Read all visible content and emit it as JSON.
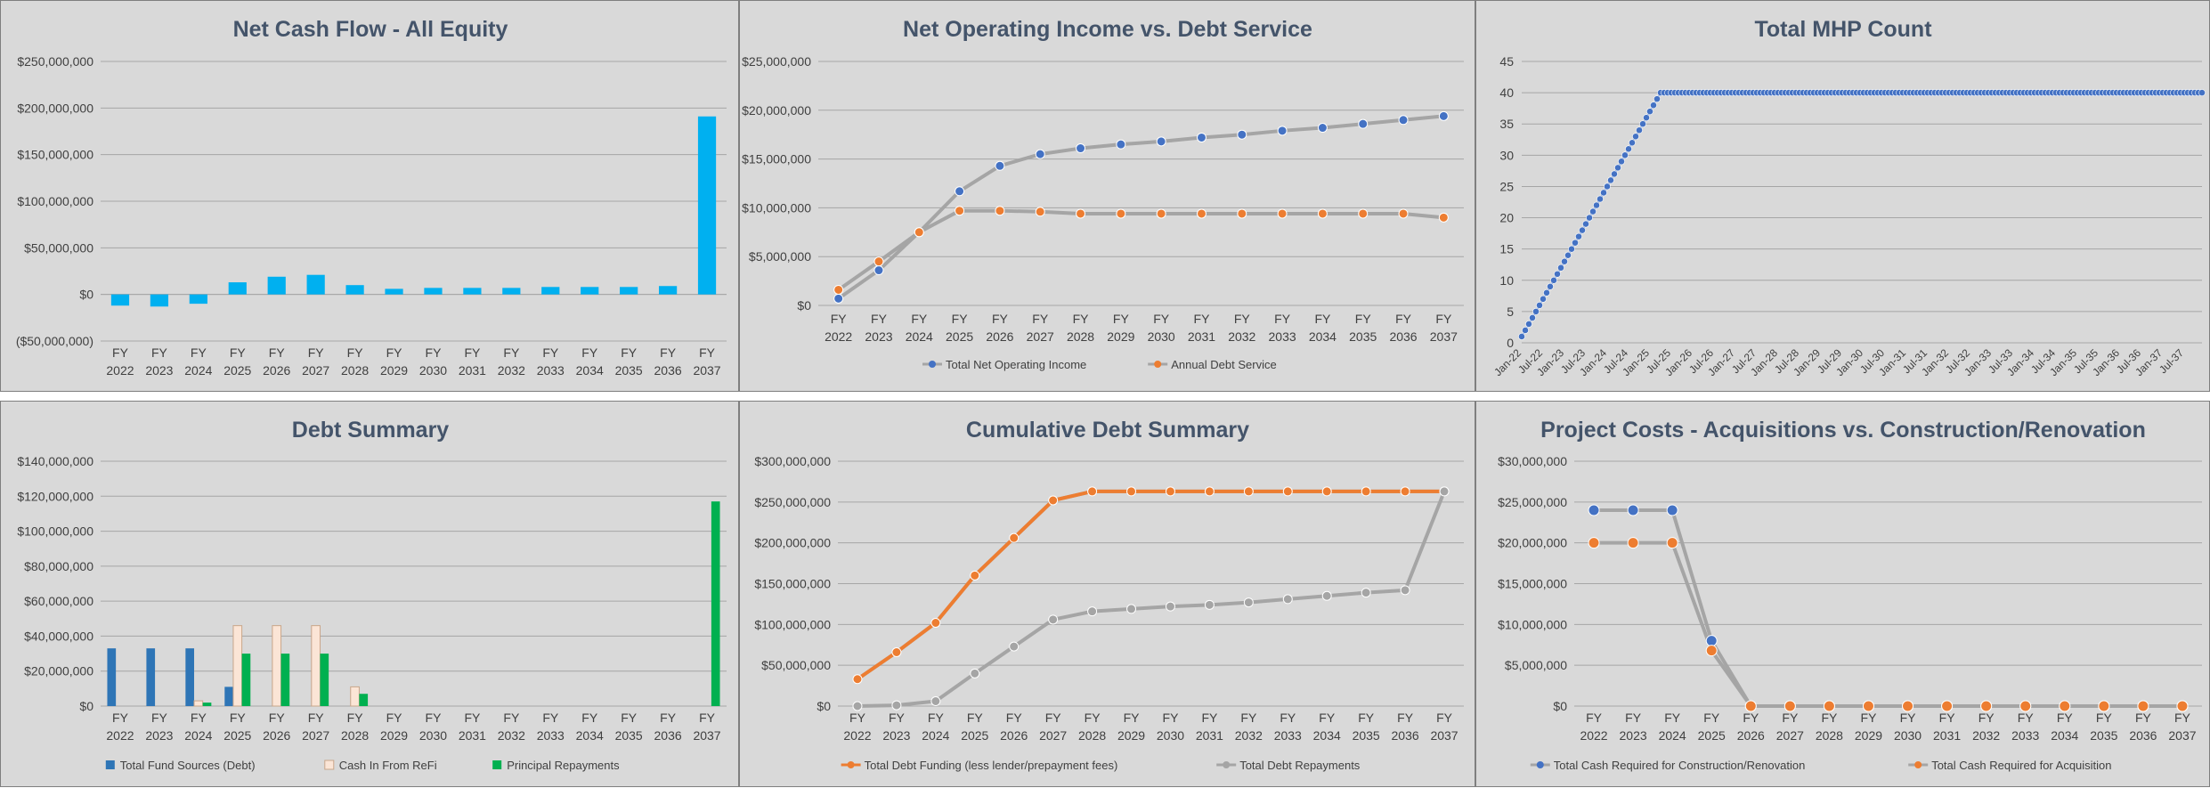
{
  "chart_data": [
    {
      "id": "net-cash-flow",
      "type": "bar",
      "title": "Net Cash Flow - All Equity",
      "categories": [
        "FY 2022",
        "FY 2023",
        "FY 2024",
        "FY 2025",
        "FY 2026",
        "FY 2027",
        "FY 2028",
        "FY 2029",
        "FY 2030",
        "FY 2031",
        "FY 2032",
        "FY 2033",
        "FY 2034",
        "FY 2035",
        "FY 2036",
        "FY 2037"
      ],
      "series": [
        {
          "values": [
            -12000000,
            -13000000,
            -10000000,
            13000000,
            19000000,
            21000000,
            10000000,
            6000000,
            7000000,
            7000000,
            7000000,
            8000000,
            8000000,
            8000000,
            9000000,
            191000000
          ],
          "color": "#00b0f0"
        }
      ],
      "ylim": [
        -50000000,
        250000000
      ],
      "yticks": [
        -50000000,
        0,
        50000000,
        100000000,
        150000000,
        200000000,
        250000000
      ],
      "ytick_labels": [
        "($50,000,000)",
        "$0",
        "$50,000,000",
        "$100,000,000",
        "$150,000,000",
        "$200,000,000",
        "$250,000,000"
      ],
      "legend": "none",
      "grid": true
    },
    {
      "id": "noi-debt-service",
      "type": "line",
      "title": "Net Operating Income vs. Debt Service",
      "categories": [
        "FY 2022",
        "FY 2023",
        "FY 2024",
        "FY 2025",
        "FY 2026",
        "FY 2027",
        "FY 2028",
        "FY 2029",
        "FY 2030",
        "FY 2031",
        "FY 2032",
        "FY 2033",
        "FY 2034",
        "FY 2035",
        "FY 2036",
        "FY 2037"
      ],
      "series": [
        {
          "name": "Total Net Operating Income",
          "values": [
            700000,
            3600000,
            7500000,
            11700000,
            14300000,
            15500000,
            16100000,
            16500000,
            16800000,
            17200000,
            17500000,
            17900000,
            18200000,
            18600000,
            19000000,
            19400000
          ],
          "color": "#4472c4"
        },
        {
          "name": "Annual Debt Service",
          "values": [
            1600000,
            4500000,
            7500000,
            9700000,
            9700000,
            9600000,
            9400000,
            9400000,
            9400000,
            9400000,
            9400000,
            9400000,
            9400000,
            9400000,
            9400000,
            9000000
          ],
          "color": "#ed7d31"
        }
      ],
      "ylim": [
        0,
        25000000
      ],
      "yticks": [
        0,
        5000000,
        10000000,
        15000000,
        20000000,
        25000000
      ],
      "ytick_labels": [
        "$0",
        "$5,000,000",
        "$10,000,000",
        "$15,000,000",
        "$20,000,000",
        "$25,000,000"
      ],
      "legend": "bottom",
      "grid": true
    },
    {
      "id": "mhp-count",
      "type": "scatter",
      "title": "Total MHP Count",
      "x_tick_labels": [
        "Jan-22",
        "Jul-22",
        "Jan-23",
        "Jul-23",
        "Jan-24",
        "Jul-24",
        "Jan-25",
        "Jul-25",
        "Jan-26",
        "Jul-26",
        "Jan-27",
        "Jul-27",
        "Jan-28",
        "Jul-28",
        "Jan-29",
        "Jul-29",
        "Jan-30",
        "Jul-30",
        "Jan-31",
        "Jul-31",
        "Jan-32",
        "Jul-32",
        "Jan-33",
        "Jul-33",
        "Jan-34",
        "Jul-34",
        "Jan-35",
        "Jul-35",
        "Jan-36",
        "Jul-36",
        "Jan-37",
        "Jul-37"
      ],
      "x_start": "Jan-22",
      "x_end": "Dec-37",
      "series": [
        {
          "ramp_from": 1,
          "ramp_to": 40,
          "ramp_end": "Apr-25",
          "plateau": 40,
          "color": "#4472c4"
        }
      ],
      "ylim": [
        0,
        45
      ],
      "yticks": [
        0,
        5,
        10,
        15,
        20,
        25,
        30,
        35,
        40,
        45
      ],
      "ytick_labels": [
        "0",
        "5",
        "10",
        "15",
        "20",
        "25",
        "30",
        "35",
        "40",
        "45"
      ],
      "legend": "none",
      "grid": true
    },
    {
      "id": "debt-summary",
      "type": "bar",
      "title": "Debt Summary",
      "categories": [
        "FY 2022",
        "FY 2023",
        "FY 2024",
        "FY 2025",
        "FY 2026",
        "FY 2027",
        "FY 2028",
        "FY 2029",
        "FY 2030",
        "FY 2031",
        "FY 2032",
        "FY 2033",
        "FY 2034",
        "FY 2035",
        "FY 2036",
        "FY 2037"
      ],
      "series": [
        {
          "name": "Total Fund Sources (Debt)",
          "values": [
            33000000,
            33000000,
            33000000,
            11000000,
            0,
            0,
            0,
            0,
            0,
            0,
            0,
            0,
            0,
            0,
            0,
            0
          ],
          "color": "#2e75b6"
        },
        {
          "name": "Cash In From ReFi",
          "values": [
            0,
            0,
            3000000,
            46000000,
            46000000,
            46000000,
            11000000,
            0,
            0,
            0,
            0,
            0,
            0,
            0,
            0,
            0
          ],
          "color": "#fbe5d6"
        },
        {
          "name": "Principal Repayments",
          "values": [
            0,
            0,
            2000000,
            30000000,
            30000000,
            30000000,
            7000000,
            0,
            0,
            0,
            0,
            0,
            0,
            0,
            0,
            117000000
          ],
          "color": "#00b050"
        }
      ],
      "ylim": [
        0,
        140000000
      ],
      "yticks": [
        0,
        20000000,
        40000000,
        60000000,
        80000000,
        100000000,
        120000000,
        140000000
      ],
      "ytick_labels": [
        "$0",
        "$20,000,000",
        "$40,000,000",
        "$60,000,000",
        "$80,000,000",
        "$100,000,000",
        "$120,000,000",
        "$140,000,000"
      ],
      "legend": "bottom",
      "grid": true
    },
    {
      "id": "cumulative-debt",
      "type": "line",
      "title": "Cumulative Debt Summary",
      "categories": [
        "FY 2022",
        "FY 2023",
        "FY 2024",
        "FY 2025",
        "FY 2026",
        "FY 2027",
        "FY 2028",
        "FY 2029",
        "FY 2030",
        "FY 2031",
        "FY 2032",
        "FY 2033",
        "FY 2034",
        "FY 2035",
        "FY 2036",
        "FY 2037"
      ],
      "series": [
        {
          "name": "Total Debt Funding (less lender/prepayment fees)",
          "values": [
            33000000,
            66000000,
            102000000,
            160000000,
            206000000,
            252000000,
            263000000,
            263000000,
            263000000,
            263000000,
            263000000,
            263000000,
            263000000,
            263000000,
            263000000,
            263000000
          ],
          "color": "#ed7d31"
        },
        {
          "name": "Total Debt Repayments",
          "values": [
            0,
            1000000,
            6000000,
            40000000,
            73000000,
            106000000,
            116000000,
            119000000,
            122000000,
            124000000,
            127000000,
            131000000,
            135000000,
            139000000,
            142000000,
            263000000
          ],
          "color": "#a5a5a5"
        }
      ],
      "ylim": [
        0,
        300000000
      ],
      "yticks": [
        0,
        50000000,
        100000000,
        150000000,
        200000000,
        250000000,
        300000000
      ],
      "ytick_labels": [
        "$0",
        "$50,000,000",
        "$100,000,000",
        "$150,000,000",
        "$200,000,000",
        "$250,000,000",
        "$300,000,000"
      ],
      "legend": "bottom",
      "grid": true
    },
    {
      "id": "project-costs",
      "type": "line",
      "title": "Project Costs - Acquisitions vs. Construction/Renovation",
      "categories": [
        "FY 2022",
        "FY 2023",
        "FY 2024",
        "FY 2025",
        "FY 2026",
        "FY 2027",
        "FY 2028",
        "FY 2029",
        "FY 2030",
        "FY 2031",
        "FY 2032",
        "FY 2033",
        "FY 2034",
        "FY 2035",
        "FY 2036",
        "FY 2037"
      ],
      "series": [
        {
          "name": "Total Cash Required for Construction/Renovation",
          "values": [
            24000000,
            24000000,
            24000000,
            8000000,
            0,
            0,
            0,
            0,
            0,
            0,
            0,
            0,
            0,
            0,
            0,
            0
          ],
          "color": "#4472c4"
        },
        {
          "name": "Total Cash Required for Acquisition",
          "values": [
            20000000,
            20000000,
            20000000,
            6800000,
            0,
            0,
            0,
            0,
            0,
            0,
            0,
            0,
            0,
            0,
            0,
            0
          ],
          "color": "#ed7d31"
        }
      ],
      "ylim": [
        0,
        30000000
      ],
      "yticks": [
        0,
        5000000,
        10000000,
        15000000,
        20000000,
        25000000,
        30000000
      ],
      "ytick_labels": [
        "$0",
        "$5,000,000",
        "$10,000,000",
        "$15,000,000",
        "$20,000,000",
        "$25,000,000",
        "$30,000,000"
      ],
      "legend": "bottom",
      "grid": true
    }
  ]
}
